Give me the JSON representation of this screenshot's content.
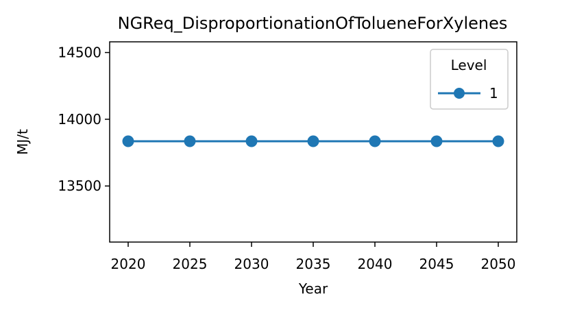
{
  "chart_data": {
    "type": "line",
    "title": "NGReq_DisproportionationOfTolueneForXylenes",
    "xlabel": "Year",
    "ylabel": "MJ/t",
    "x": [
      2020,
      2025,
      2030,
      2035,
      2040,
      2045,
      2050
    ],
    "x_ticks": [
      "2020",
      "2025",
      "2030",
      "2035",
      "2040",
      "2045",
      "2050"
    ],
    "y_ticks": [
      "13500",
      "14000",
      "14500"
    ],
    "y_tick_values": [
      13500,
      14000,
      14500
    ],
    "xlim": [
      2018.5,
      2051.5
    ],
    "ylim": [
      13080,
      14580
    ],
    "grid": false,
    "legend": {
      "title": "Level",
      "placement": "top-right"
    },
    "series": [
      {
        "name": "1",
        "color": "#1f77b4",
        "marker": "circle",
        "values": [
          13835,
          13835,
          13835,
          13835,
          13835,
          13835,
          13835
        ]
      }
    ]
  }
}
